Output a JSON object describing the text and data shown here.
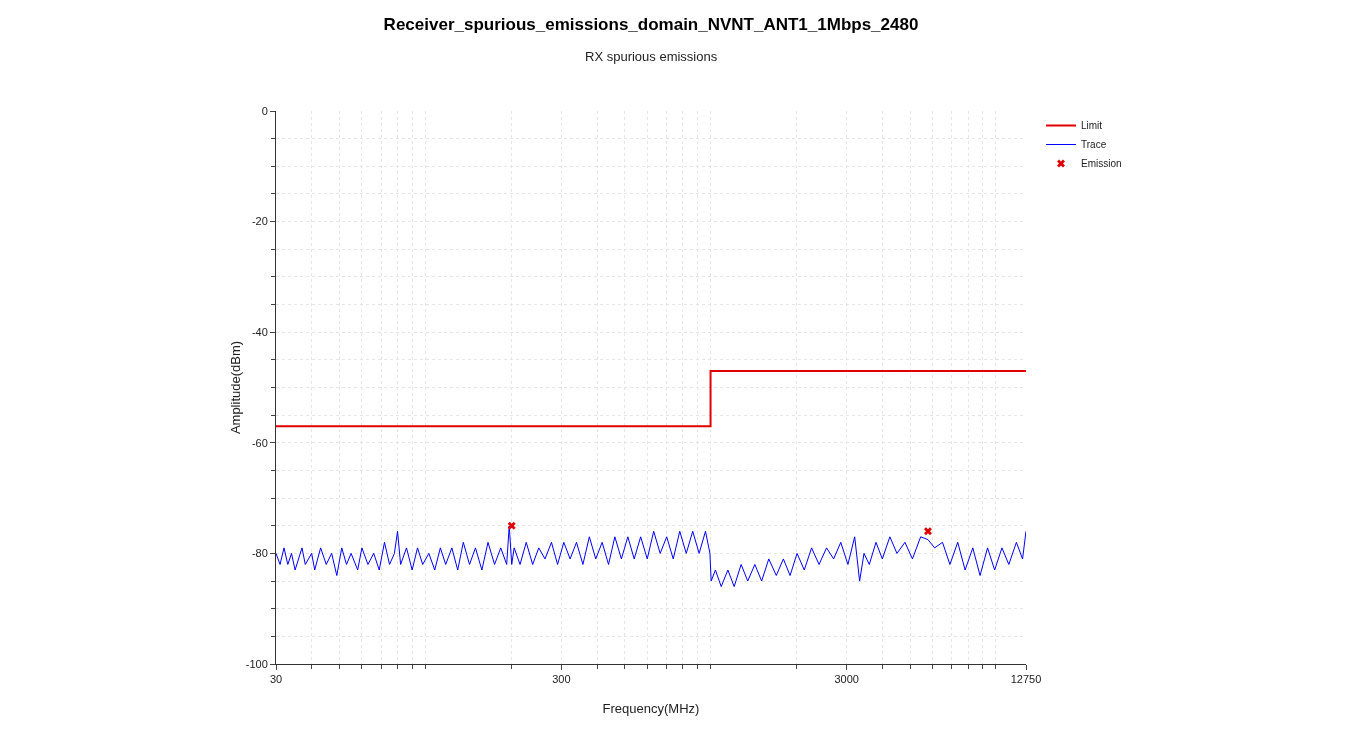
{
  "chart_data": {
    "type": "line",
    "title": "Receiver_spurious_emissions_domain_NVNT_ANT1_1Mbps_2480",
    "subtitle": "RX spurious emissions",
    "xlabel": "Frequency(MHz)",
    "ylabel": "Amplitude(dBm)",
    "log": "x",
    "xlim": [
      30,
      12750
    ],
    "xticks": [
      30,
      300,
      3000,
      12750
    ],
    "ylim": [
      -100,
      0
    ],
    "yticks": [
      -100,
      -80,
      -60,
      -40,
      -20,
      0
    ],
    "grid": true,
    "legend": "top right",
    "series": [
      {
        "name": "Limit",
        "type": "step",
        "color": "#e00000",
        "x": [
          30,
          1000,
          12750
        ],
        "values": [
          -57,
          -47,
          -47
        ]
      },
      {
        "name": "Trace",
        "color": "#0000ff",
        "x": [
          30,
          31,
          32,
          33,
          34,
          35,
          37,
          38,
          40,
          41,
          43,
          45,
          47,
          49,
          51,
          53,
          55,
          58,
          60,
          63,
          66,
          69,
          72,
          75,
          78,
          80,
          82,
          86,
          90,
          94,
          98,
          103,
          108,
          113,
          118,
          124,
          130,
          136,
          143,
          150,
          158,
          166,
          175,
          184,
          193,
          197,
          201,
          205,
          215,
          226,
          238,
          250,
          263,
          277,
          291,
          306,
          322,
          339,
          357,
          376,
          396,
          417,
          439,
          462,
          487,
          513,
          540,
          569,
          600,
          632,
          666,
          702,
          740,
          780,
          822,
          866,
          912,
          960,
          995,
          1005,
          1040,
          1090,
          1150,
          1210,
          1280,
          1350,
          1430,
          1510,
          1600,
          1700,
          1800,
          1900,
          2010,
          2130,
          2260,
          2400,
          2550,
          2700,
          2860,
          3030,
          3200,
          3330,
          3450,
          3600,
          3800,
          4000,
          4250,
          4500,
          4800,
          5100,
          5450,
          5780,
          6100,
          6500,
          6900,
          7350,
          7800,
          8300,
          8800,
          9350,
          9900,
          10500,
          11100,
          11800,
          12400,
          12750
        ],
        "values": [
          -80,
          -82,
          -79,
          -82,
          -80,
          -83,
          -79,
          -82,
          -80,
          -83,
          -79,
          -82,
          -80,
          -84,
          -79,
          -82,
          -80,
          -83,
          -79,
          -82,
          -80,
          -83,
          -78,
          -82,
          -80,
          -76,
          -82,
          -79,
          -83,
          -79,
          -82,
          -80,
          -83,
          -79,
          -82,
          -79,
          -83,
          -78,
          -82,
          -79,
          -83,
          -78,
          -82,
          -79,
          -82,
          -75,
          -82,
          -79,
          -82,
          -78,
          -82,
          -79,
          -81,
          -78,
          -82,
          -78,
          -81,
          -78,
          -82,
          -77,
          -81,
          -78,
          -82,
          -77,
          -81,
          -77,
          -81,
          -77,
          -81,
          -76,
          -80,
          -77,
          -81,
          -76,
          -80,
          -76,
          -80,
          -76,
          -80,
          -85,
          -83,
          -86,
          -83,
          -86,
          -82,
          -85,
          -82,
          -85,
          -81,
          -84,
          -81,
          -84,
          -80,
          -83,
          -79,
          -82,
          -79,
          -81,
          -78,
          -82,
          -77,
          -85,
          -80,
          -82,
          -78,
          -81,
          -77,
          -80,
          -78,
          -81,
          -77,
          -77.5,
          -79,
          -78,
          -82,
          -78,
          -83,
          -79,
          -84,
          -79,
          -83,
          -79,
          -82,
          -78,
          -81,
          -76
        ]
      },
      {
        "name": "Emission",
        "type": "scatter",
        "marker": "cross",
        "color": "#e00000",
        "x": [
          201,
          5780
        ],
        "values": [
          -75,
          -76
        ]
      }
    ]
  }
}
